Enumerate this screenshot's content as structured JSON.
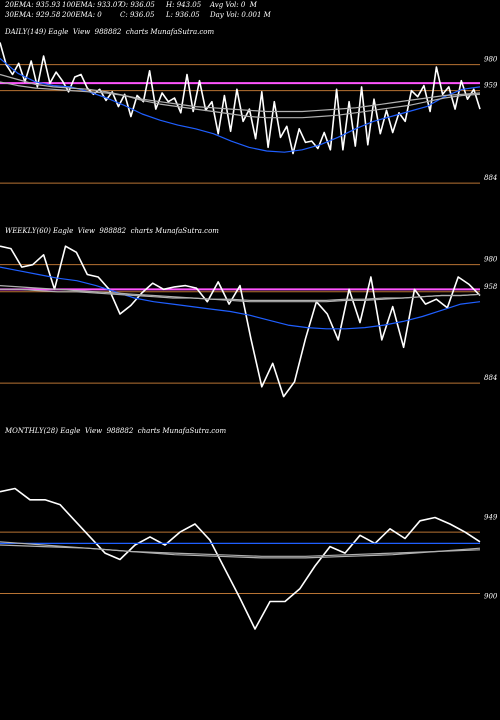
{
  "header": {
    "row1": [
      "20EMA: 935.93",
      "100EMA: 933.07",
      "O: 936.05",
      "H: 943.05",
      "Avg Vol: 0  M"
    ],
    "row2": [
      "30EMA: 929.58",
      "200EMA: 0",
      "C: 936.05",
      "L: 936.05",
      "Day Vol: 0.001 M"
    ]
  },
  "colors": {
    "background": "#000000",
    "price_line": "#ffffff",
    "ema_fast": "#1f5fff",
    "ema_slow": "#b0b0b0",
    "level_line": "#b87333",
    "pink_line": "#ff55ff"
  },
  "chart_data": [
    {
      "type": "line",
      "label": "DAILY(149) Eagle  View  988882  charts MunafaSutra.com",
      "ylim": [
        850,
        1000
      ],
      "y_ticks": [
        {
          "label": "980",
          "value": 980
        },
        {
          "label": "959",
          "value": 959
        },
        {
          "label": "884",
          "value": 884
        }
      ],
      "levels": [
        {
          "value": 980,
          "color": "level"
        },
        {
          "value": 965,
          "color": "pink"
        },
        {
          "value": 959,
          "color": "level"
        },
        {
          "value": 884,
          "color": "level"
        }
      ],
      "series": [
        {
          "values": [
            998,
            980,
            972,
            981,
            966,
            983,
            962,
            987,
            965,
            974,
            967,
            958,
            970,
            972,
            961,
            956,
            960,
            951,
            958,
            946,
            956,
            938,
            955,
            950,
            975,
            944,
            957,
            950,
            953,
            941,
            972,
            942,
            967,
            943,
            950,
            924,
            955,
            926,
            960,
            934,
            944,
            920,
            958,
            913,
            950,
            921,
            930,
            908,
            928,
            917,
            918,
            912,
            925,
            911,
            960,
            911,
            950,
            914,
            962,
            915,
            952,
            924,
            943,
            925,
            941,
            934,
            959,
            954,
            963,
            942,
            978,
            956,
            962,
            944,
            967,
            952,
            960,
            944
          ]
        },
        {
          "color": "blue",
          "values": [
            985,
            973,
            966,
            963,
            962,
            958,
            953,
            947,
            940,
            935,
            931,
            928,
            924,
            918,
            913,
            910,
            909,
            911,
            915,
            921,
            928,
            934,
            938,
            942,
            946,
            954,
            960,
            962
          ]
        },
        {
          "color": "gray",
          "values": [
            972,
            968,
            964,
            962,
            961,
            960,
            958,
            955,
            951,
            948,
            946,
            944,
            942,
            940,
            938,
            937,
            937,
            937,
            938,
            939,
            941,
            943,
            945,
            947,
            950,
            953,
            955,
            956
          ]
        },
        {
          "color": "gray",
          "values": [
            966,
            963,
            961,
            960,
            959,
            958,
            957,
            955,
            952,
            950,
            948,
            946,
            945,
            944,
            943,
            942,
            942,
            942,
            943,
            944,
            945,
            947,
            949,
            951,
            953,
            955,
            956,
            957
          ]
        }
      ]
    },
    {
      "type": "line",
      "label": "WEEKLY(60) Eagle  View  988882  charts MunafaSutra.com",
      "ylim": [
        850,
        1000
      ],
      "y_ticks": [
        {
          "label": "980",
          "value": 980
        },
        {
          "label": "958",
          "value": 958
        },
        {
          "label": "884",
          "value": 884
        }
      ],
      "levels": [
        {
          "value": 980,
          "color": "level"
        },
        {
          "value": 960,
          "color": "pink"
        },
        {
          "value": 958,
          "color": "level"
        },
        {
          "value": 884,
          "color": "level"
        }
      ],
      "series": [
        {
          "values": [
            995,
            993,
            978,
            980,
            988,
            960,
            995,
            990,
            972,
            970,
            960,
            940,
            947,
            957,
            965,
            960,
            962,
            963,
            961,
            950,
            966,
            948,
            963,
            920,
            881,
            900,
            873,
            885,
            920,
            950,
            940,
            919,
            960,
            933,
            970,
            919,
            946,
            913,
            960,
            948,
            952,
            945,
            970,
            964,
            955
          ]
        },
        {
          "color": "blue",
          "values": [
            978,
            975,
            972,
            969,
            967,
            963,
            958,
            953,
            950,
            948,
            946,
            944,
            942,
            939,
            935,
            931,
            929,
            928,
            928,
            929,
            931,
            934,
            938,
            943,
            948,
            950
          ]
        },
        {
          "color": "gray",
          "values": [
            963,
            962,
            961,
            960,
            959,
            958,
            957,
            956,
            955,
            954,
            953,
            952,
            951,
            950,
            950,
            950,
            950,
            950,
            951,
            951,
            952,
            953,
            954,
            955,
            955,
            956
          ]
        },
        {
          "color": "gray",
          "values": [
            960,
            960,
            959,
            958,
            958,
            957,
            956,
            955,
            954,
            953,
            953,
            952,
            952,
            951,
            951,
            951,
            951,
            951,
            952,
            952,
            953,
            953,
            954,
            955,
            955,
            956
          ]
        }
      ]
    },
    {
      "type": "line",
      "label": "MONTHLY(28) Eagle  View  988882  charts MunafaSutra.com",
      "ylim": [
        870,
        1000
      ],
      "y_ticks": [
        {
          "label": "949",
          "value": 949
        },
        {
          "label": "900",
          "value": 900
        }
      ],
      "levels": [
        {
          "value": 943,
          "color": "level"
        },
        {
          "value": 905,
          "color": "level"
        }
      ],
      "series": [
        {
          "values": [
            968,
            970,
            963,
            963,
            960,
            950,
            940,
            930,
            926,
            935,
            940,
            935,
            943,
            948,
            938,
            920,
            902,
            883,
            900,
            900,
            908,
            922,
            934,
            930,
            941,
            936,
            945,
            939,
            950,
            952,
            948,
            943,
            937
          ]
        },
        {
          "color": "blue",
          "values": [
            936,
            936,
            936,
            936,
            936,
            936,
            936,
            936,
            936,
            936
          ]
        },
        {
          "color": "gray",
          "values": [
            937,
            935,
            933,
            931,
            929,
            928,
            927,
            927,
            928,
            929,
            931,
            933
          ]
        },
        {
          "color": "gray",
          "values": [
            935,
            934,
            933,
            931,
            930,
            929,
            928,
            928,
            929,
            930,
            931,
            932
          ]
        }
      ]
    }
  ]
}
